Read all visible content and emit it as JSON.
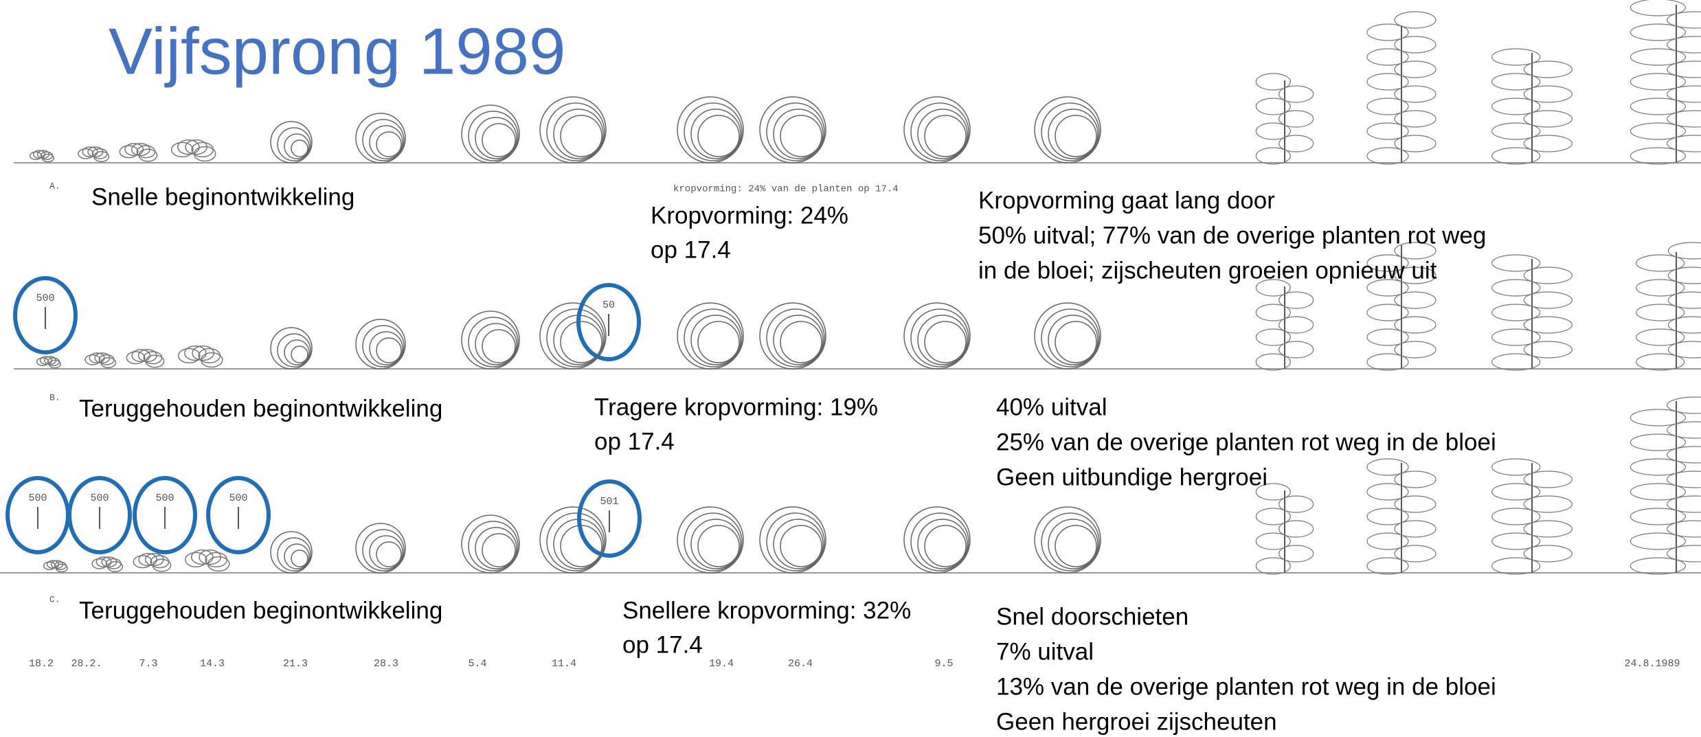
{
  "title": "Vijfsprong 1989",
  "rows": [
    {
      "letter": "A.",
      "label": "Snelle beginontwikkeling",
      "markers": [],
      "stage2": [
        "Kropvorming: 24%",
        "op 17.4"
      ],
      "caption": "kropvorming: 24% van de planten op 17.4",
      "stage3": [
        "Kropvorming gaat lang door",
        "50% uitval;  77% van de overige planten rot weg",
        "in de bloei; zijscheuten groeien opnieuw uit"
      ]
    },
    {
      "letter": "B.",
      "label": "Teruggehouden beginontwikkeling",
      "markers": [
        "500",
        "50"
      ],
      "stage2": [
        "Tragere kropvorming: 19%",
        "op 17.4"
      ],
      "stage3": [
        "40% uitval",
        "25% van de overige planten rot weg in de bloei",
        "Geen uitbundige hergroei"
      ]
    },
    {
      "letter": "C.",
      "label": "Teruggehouden beginontwikkeling",
      "markers": [
        "500",
        "500",
        "500",
        "500",
        "501"
      ],
      "stage2": [
        "Snellere kropvorming: 32%",
        "op 17.4"
      ],
      "stage3": [
        "Snel doorschieten",
        "7% uitval",
        "13% van de overige planten rot weg in de bloei",
        "Geen hergroei zijscheuten"
      ]
    }
  ],
  "dates": [
    "18.2",
    "28.2.",
    "7.3",
    "14.3",
    "21.3",
    "28.3",
    "5.4",
    "11.4",
    "19.4",
    "26.4",
    "9.5",
    "24.8.1989"
  ]
}
